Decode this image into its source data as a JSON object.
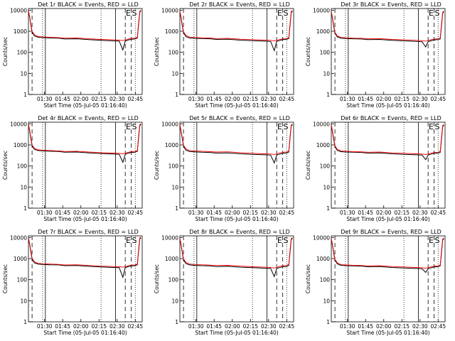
{
  "panel_order": [
    "det1",
    "det2",
    "det3",
    "det4",
    "det5",
    "det6",
    "det7",
    "det8",
    "det9"
  ],
  "common": {
    "xlabel": "Start Time (05-Jul-05 01:16:40)",
    "ylabel": "Counts/sec",
    "x_ticks": [
      "01:30",
      "01:45",
      "02:00",
      "02:15",
      "02:30",
      "02:45"
    ],
    "y_ticks": [
      "1",
      "10",
      "100",
      "1000",
      "10000"
    ],
    "event_markers": [
      "E",
      "S"
    ],
    "colors": {
      "events": "#000000",
      "lld": "#ff0000"
    }
  },
  "chart_data": [
    {
      "type": "line",
      "id": "det1",
      "title": "Det 1r  BLACK = Events, RED = LLD",
      "xlim": [
        0,
        94
      ],
      "ylim": [
        1,
        12000
      ],
      "yscale": "log",
      "x": [
        0,
        1,
        2,
        3,
        5,
        8,
        12,
        18,
        25,
        30,
        40,
        50,
        60,
        70,
        75,
        78,
        80,
        82,
        85,
        88,
        90,
        91,
        92,
        93
      ],
      "series": [
        {
          "legend": "BLACK = Events",
          "values": [
            9000,
            4500,
            2000,
            900,
            600,
            520,
            500,
            480,
            470,
            430,
            440,
            400,
            370,
            350,
            340,
            130,
            340,
            380,
            420,
            430,
            480,
            2000,
            8000,
            9500
          ]
        },
        {
          "legend": "RED = LLD",
          "values": [
            9500,
            5000,
            2300,
            1000,
            680,
            560,
            540,
            520,
            500,
            470,
            480,
            440,
            410,
            390,
            380,
            360,
            380,
            420,
            460,
            470,
            520,
            2500,
            9000,
            10000
          ]
        }
      ],
      "vlines": [
        {
          "x": 11.7,
          "style": "dotted"
        },
        {
          "x": 60,
          "style": "dotted"
        },
        {
          "x": 88.3,
          "style": "dotted"
        },
        {
          "x": 3,
          "style": "dashed"
        },
        {
          "x": 80,
          "style": "dashed"
        },
        {
          "x": 85,
          "style": "dashed"
        },
        {
          "x": 14,
          "style": "solid"
        },
        {
          "x": 72,
          "style": "solid"
        }
      ]
    },
    {
      "type": "line",
      "id": "det2",
      "title": "Det 2r  BLACK = Events, RED = LLD",
      "xlim": [
        0,
        94
      ],
      "ylim": [
        1,
        12000
      ],
      "yscale": "log",
      "x": [
        0,
        1,
        2,
        3,
        5,
        8,
        12,
        18,
        25,
        30,
        40,
        50,
        60,
        70,
        75,
        78,
        80,
        82,
        85,
        88,
        90,
        91,
        92,
        93
      ],
      "series": [
        {
          "legend": "BLACK = Events",
          "values": [
            8500,
            4200,
            1800,
            850,
            560,
            480,
            460,
            450,
            440,
            410,
            420,
            380,
            360,
            340,
            330,
            120,
            330,
            360,
            400,
            410,
            450,
            1800,
            7500,
            9000
          ]
        },
        {
          "legend": "RED = LLD",
          "values": [
            9000,
            4700,
            2100,
            950,
            640,
            530,
            510,
            490,
            480,
            450,
            460,
            420,
            400,
            380,
            370,
            350,
            370,
            400,
            440,
            450,
            500,
            2200,
            8500,
            9800
          ]
        }
      ],
      "vlines": [
        {
          "x": 11.7,
          "style": "dotted"
        },
        {
          "x": 60,
          "style": "dotted"
        },
        {
          "x": 88.3,
          "style": "dotted"
        },
        {
          "x": 3,
          "style": "dashed"
        },
        {
          "x": 80,
          "style": "dashed"
        },
        {
          "x": 85,
          "style": "dashed"
        },
        {
          "x": 14,
          "style": "solid"
        },
        {
          "x": 72,
          "style": "solid"
        }
      ]
    },
    {
      "type": "line",
      "id": "det3",
      "title": "Det 3r  BLACK = Events, RED = LLD",
      "xlim": [
        0,
        94
      ],
      "ylim": [
        1,
        12000
      ],
      "yscale": "log",
      "x": [
        0,
        1,
        2,
        3,
        5,
        8,
        12,
        18,
        25,
        30,
        40,
        50,
        60,
        70,
        75,
        78,
        80,
        82,
        85,
        88,
        90,
        91,
        92,
        93
      ],
      "series": [
        {
          "legend": "BLACK = Events",
          "values": [
            8000,
            4000,
            1700,
            800,
            540,
            470,
            450,
            440,
            430,
            400,
            410,
            370,
            350,
            330,
            320,
            180,
            320,
            350,
            390,
            400,
            430,
            1600,
            7000,
            8500
          ]
        },
        {
          "legend": "RED = LLD",
          "values": [
            8500,
            4400,
            2000,
            900,
            600,
            510,
            490,
            470,
            460,
            440,
            450,
            410,
            390,
            370,
            360,
            340,
            360,
            390,
            430,
            440,
            480,
            2000,
            8000,
            9200
          ]
        }
      ],
      "vlines": [
        {
          "x": 11.7,
          "style": "dotted"
        },
        {
          "x": 60,
          "style": "dotted"
        },
        {
          "x": 88.3,
          "style": "dotted"
        },
        {
          "x": 3,
          "style": "dashed"
        },
        {
          "x": 80,
          "style": "dashed"
        },
        {
          "x": 85,
          "style": "dashed"
        },
        {
          "x": 14,
          "style": "solid"
        },
        {
          "x": 72,
          "style": "solid"
        }
      ]
    },
    {
      "type": "line",
      "id": "det4",
      "title": "Det 4r  BLACK = Events, RED = LLD",
      "xlim": [
        0,
        94
      ],
      "ylim": [
        1,
        12000
      ],
      "yscale": "log",
      "x": [
        0,
        1,
        2,
        3,
        5,
        8,
        12,
        18,
        25,
        30,
        40,
        50,
        60,
        70,
        75,
        78,
        80,
        82,
        85,
        88,
        90,
        91,
        92,
        93
      ],
      "series": [
        {
          "legend": "BLACK = Events",
          "values": [
            9000,
            4600,
            2000,
            900,
            620,
            540,
            520,
            500,
            490,
            450,
            460,
            420,
            390,
            370,
            360,
            150,
            360,
            400,
            440,
            450,
            500,
            2100,
            8200,
            9600
          ]
        },
        {
          "legend": "RED = LLD",
          "values": [
            9600,
            5100,
            2300,
            1000,
            690,
            580,
            560,
            540,
            520,
            490,
            500,
            460,
            430,
            410,
            400,
            380,
            400,
            440,
            480,
            490,
            540,
            2600,
            9200,
            10200
          ]
        }
      ],
      "vlines": [
        {
          "x": 11.7,
          "style": "dotted"
        },
        {
          "x": 60,
          "style": "dotted"
        },
        {
          "x": 88.3,
          "style": "dotted"
        },
        {
          "x": 3,
          "style": "dashed"
        },
        {
          "x": 80,
          "style": "dashed"
        },
        {
          "x": 85,
          "style": "dashed"
        },
        {
          "x": 14,
          "style": "solid"
        },
        {
          "x": 72,
          "style": "solid"
        }
      ]
    },
    {
      "type": "line",
      "id": "det5",
      "title": "Det 5r  BLACK = Events, RED = LLD",
      "xlim": [
        0,
        94
      ],
      "ylim": [
        1,
        12000
      ],
      "yscale": "log",
      "x": [
        0,
        1,
        2,
        3,
        5,
        8,
        12,
        18,
        25,
        30,
        40,
        50,
        60,
        70,
        75,
        78,
        80,
        82,
        85,
        88,
        90,
        91,
        92,
        93
      ],
      "series": [
        {
          "legend": "BLACK = Events",
          "values": [
            8700,
            4300,
            1900,
            870,
            570,
            490,
            470,
            450,
            440,
            410,
            420,
            380,
            360,
            340,
            330,
            140,
            330,
            360,
            400,
            410,
            460,
            1900,
            7800,
            9200
          ]
        },
        {
          "legend": "RED = LLD",
          "values": [
            9200,
            4800,
            2200,
            970,
            650,
            540,
            520,
            500,
            480,
            460,
            470,
            430,
            400,
            380,
            370,
            350,
            370,
            410,
            450,
            460,
            510,
            2300,
            8700,
            9900
          ]
        }
      ],
      "vlines": [
        {
          "x": 11.7,
          "style": "dotted"
        },
        {
          "x": 60,
          "style": "dotted"
        },
        {
          "x": 88.3,
          "style": "dotted"
        },
        {
          "x": 3,
          "style": "dashed"
        },
        {
          "x": 80,
          "style": "dashed"
        },
        {
          "x": 85,
          "style": "dashed"
        },
        {
          "x": 14,
          "style": "solid"
        },
        {
          "x": 72,
          "style": "solid"
        }
      ]
    },
    {
      "type": "line",
      "id": "det6",
      "title": "Det 6r  BLACK = Events, RED = LLD",
      "xlim": [
        0,
        94
      ],
      "ylim": [
        1,
        12000
      ],
      "yscale": "log",
      "x": [
        0,
        1,
        2,
        3,
        5,
        8,
        12,
        18,
        25,
        30,
        40,
        50,
        60,
        70,
        75,
        78,
        80,
        82,
        85,
        88,
        90,
        91,
        92,
        93
      ],
      "series": [
        {
          "legend": "BLACK = Events",
          "values": [
            8300,
            4100,
            1800,
            820,
            550,
            480,
            460,
            450,
            440,
            410,
            420,
            380,
            360,
            340,
            330,
            200,
            330,
            360,
            400,
            410,
            440,
            1700,
            7200,
            8800
          ]
        },
        {
          "legend": "RED = LLD",
          "values": [
            8800,
            4600,
            2100,
            920,
            620,
            520,
            500,
            480,
            470,
            450,
            460,
            420,
            400,
            380,
            370,
            350,
            370,
            400,
            440,
            450,
            490,
            2100,
            8200,
            9500
          ]
        }
      ],
      "vlines": [
        {
          "x": 11.7,
          "style": "dotted"
        },
        {
          "x": 60,
          "style": "dotted"
        },
        {
          "x": 88.3,
          "style": "dotted"
        },
        {
          "x": 3,
          "style": "dashed"
        },
        {
          "x": 80,
          "style": "dashed"
        },
        {
          "x": 85,
          "style": "dashed"
        },
        {
          "x": 14,
          "style": "solid"
        },
        {
          "x": 72,
          "style": "solid"
        }
      ]
    },
    {
      "type": "line",
      "id": "det7",
      "title": "Det 7r  BLACK = Events, RED = LLD",
      "xlim": [
        0,
        94
      ],
      "ylim": [
        1,
        12000
      ],
      "yscale": "log",
      "x": [
        0,
        1,
        2,
        3,
        5,
        8,
        12,
        18,
        25,
        30,
        40,
        50,
        60,
        70,
        75,
        78,
        80,
        82,
        85,
        88,
        90,
        91,
        92,
        93
      ],
      "series": [
        {
          "legend": "BLACK = Events",
          "values": [
            9200,
            4700,
            2100,
            920,
            630,
            550,
            530,
            510,
            500,
            460,
            470,
            430,
            400,
            380,
            370,
            130,
            370,
            410,
            450,
            460,
            510,
            2200,
            8500,
            9800
          ]
        },
        {
          "legend": "RED = LLD",
          "values": [
            9800,
            5200,
            2400,
            1050,
            700,
            590,
            570,
            550,
            530,
            500,
            510,
            470,
            440,
            420,
            410,
            390,
            410,
            450,
            490,
            500,
            550,
            2700,
            9500,
            10500
          ]
        }
      ],
      "vlines": [
        {
          "x": 11.7,
          "style": "dotted"
        },
        {
          "x": 60,
          "style": "dotted"
        },
        {
          "x": 88.3,
          "style": "dotted"
        },
        {
          "x": 3,
          "style": "dashed"
        },
        {
          "x": 80,
          "style": "dashed"
        },
        {
          "x": 85,
          "style": "dashed"
        },
        {
          "x": 14,
          "style": "solid"
        },
        {
          "x": 72,
          "style": "solid"
        }
      ]
    },
    {
      "type": "line",
      "id": "det8",
      "title": "Det 8r  BLACK = Events, RED = LLD",
      "xlim": [
        0,
        94
      ],
      "ylim": [
        1,
        12000
      ],
      "yscale": "log",
      "x": [
        0,
        1,
        2,
        3,
        5,
        8,
        12,
        18,
        25,
        30,
        40,
        50,
        60,
        70,
        75,
        78,
        80,
        82,
        85,
        88,
        90,
        91,
        92,
        93
      ],
      "series": [
        {
          "legend": "BLACK = Events",
          "values": [
            8800,
            4400,
            1900,
            880,
            580,
            500,
            480,
            460,
            450,
            420,
            430,
            390,
            370,
            350,
            340,
            140,
            340,
            370,
            410,
            420,
            470,
            1900,
            7900,
            9300
          ]
        },
        {
          "legend": "RED = LLD",
          "values": [
            9300,
            4900,
            2200,
            980,
            660,
            550,
            530,
            510,
            490,
            470,
            480,
            440,
            410,
            390,
            380,
            360,
            380,
            420,
            460,
            470,
            520,
            2400,
            8800,
            10000
          ]
        }
      ],
      "vlines": [
        {
          "x": 11.7,
          "style": "dotted"
        },
        {
          "x": 60,
          "style": "dotted"
        },
        {
          "x": 88.3,
          "style": "dotted"
        },
        {
          "x": 3,
          "style": "dashed"
        },
        {
          "x": 80,
          "style": "dashed"
        },
        {
          "x": 85,
          "style": "dashed"
        },
        {
          "x": 14,
          "style": "solid"
        },
        {
          "x": 72,
          "style": "solid"
        }
      ]
    },
    {
      "type": "line",
      "id": "det9",
      "title": "Det 9r  BLACK = Events, RED = LLD",
      "xlim": [
        0,
        94
      ],
      "ylim": [
        1,
        12000
      ],
      "yscale": "log",
      "x": [
        0,
        1,
        2,
        3,
        5,
        8,
        12,
        18,
        25,
        30,
        40,
        50,
        60,
        70,
        75,
        78,
        80,
        82,
        85,
        88,
        90,
        91,
        92,
        93
      ],
      "series": [
        {
          "legend": "BLACK = Events",
          "values": [
            8400,
            4200,
            1800,
            830,
            560,
            480,
            460,
            450,
            440,
            410,
            420,
            380,
            360,
            340,
            330,
            220,
            330,
            360,
            400,
            410,
            450,
            1700,
            7300,
            8900
          ]
        },
        {
          "legend": "RED = LLD",
          "values": [
            8900,
            4700,
            2100,
            930,
            630,
            520,
            500,
            480,
            470,
            450,
            460,
            420,
            400,
            380,
            370,
            350,
            370,
            400,
            440,
            450,
            490,
            2100,
            8300,
            9600
          ]
        }
      ],
      "vlines": [
        {
          "x": 11.7,
          "style": "dotted"
        },
        {
          "x": 60,
          "style": "dotted"
        },
        {
          "x": 88.3,
          "style": "dotted"
        },
        {
          "x": 3,
          "style": "dashed"
        },
        {
          "x": 80,
          "style": "dashed"
        },
        {
          "x": 85,
          "style": "dashed"
        },
        {
          "x": 14,
          "style": "solid"
        },
        {
          "x": 72,
          "style": "solid"
        }
      ]
    }
  ]
}
